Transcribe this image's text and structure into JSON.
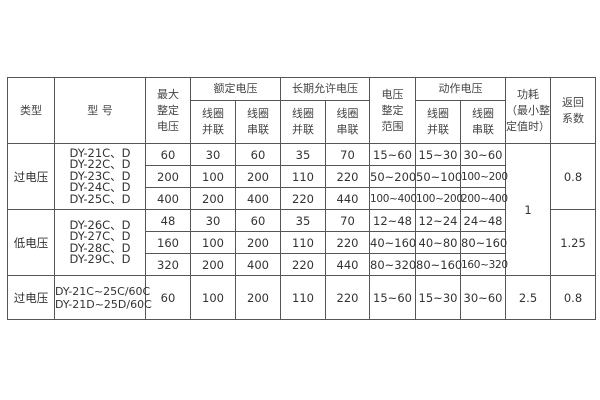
{
  "header": {
    "type": "类型",
    "model": "型 号",
    "max_setting": [
      "最大",
      "整定",
      "电压"
    ],
    "rated_voltage": "额定电压",
    "long_term_voltage": "长期允许电压",
    "setting_range": [
      "电压",
      "整定",
      "范围"
    ],
    "operating_voltage": "动作电压",
    "power": [
      "功耗",
      "（最小整",
      "定值时）"
    ],
    "return_coef": [
      "返回",
      "系数"
    ],
    "parallel": [
      "线圈",
      "并联"
    ],
    "series": [
      "线圈",
      "串联"
    ]
  },
  "groups": [
    {
      "type": "过电压",
      "models": [
        "DY-21C、D",
        "DY-22C、D",
        "DY-23C、D",
        "DY-24C、D",
        "DY-25C、D"
      ],
      "return_coef": "0.8",
      "rows": [
        [
          "60",
          "30",
          "60",
          "35",
          "70",
          "15~60",
          "15~30",
          "30~60"
        ],
        [
          "200",
          "100",
          "200",
          "110",
          "220",
          "50~200",
          "50~100",
          "100~200"
        ],
        [
          "400",
          "200",
          "400",
          "220",
          "440",
          "100~400",
          "100~200",
          "200~400"
        ]
      ]
    },
    {
      "type": "低电压",
      "models": [
        "DY-26C、D",
        "DY-27C、D",
        "DY-28C、D",
        "DY-29C、D"
      ],
      "return_coef": "1.25",
      "rows": [
        [
          "48",
          "30",
          "60",
          "35",
          "70",
          "12~48",
          "12~24",
          "24~48"
        ],
        [
          "160",
          "100",
          "200",
          "110",
          "220",
          "40~160",
          "40~80",
          "80~160"
        ],
        [
          "320",
          "200",
          "400",
          "220",
          "440",
          "80~320",
          "80~160",
          "160~320"
        ]
      ]
    },
    {
      "type": "过电压",
      "models": [
        "DY-21C~25C/60C",
        "DY-21D~25D/60C"
      ],
      "return_coef": "0.8",
      "power": "2.5",
      "rows": [
        [
          "60",
          "100",
          "200",
          "110",
          "220",
          "15~60",
          "15~30",
          "30~60"
        ]
      ]
    }
  ],
  "power_shared": "1"
}
